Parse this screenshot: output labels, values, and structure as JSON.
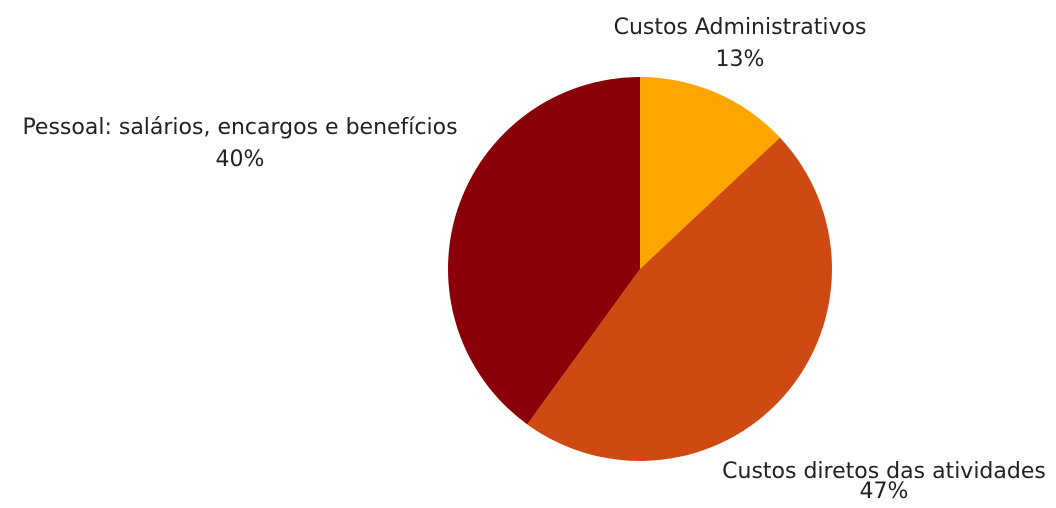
{
  "chart_data": {
    "type": "pie",
    "title": "",
    "colors": {
      "Custos Administrativos": "#FFA500",
      "Custos diretos das atividades": "#CE4A12",
      "Pessoal: salários, encargos e benefícios": "#8B0008"
    },
    "slices": [
      {
        "label": "Custos Administrativos",
        "value": 13,
        "percent_text": "13%",
        "color": "#FFA500"
      },
      {
        "label": "Custos diretos das atividades",
        "value": 47,
        "percent_text": "47%",
        "color": "#CE4A12"
      },
      {
        "label": "Pessoal: salários, encargos e benefícios",
        "value": 40,
        "percent_text": "40%",
        "color": "#8B0008"
      }
    ],
    "legend": "none",
    "start_angle": "12 o'clock",
    "direction": "clockwise"
  }
}
